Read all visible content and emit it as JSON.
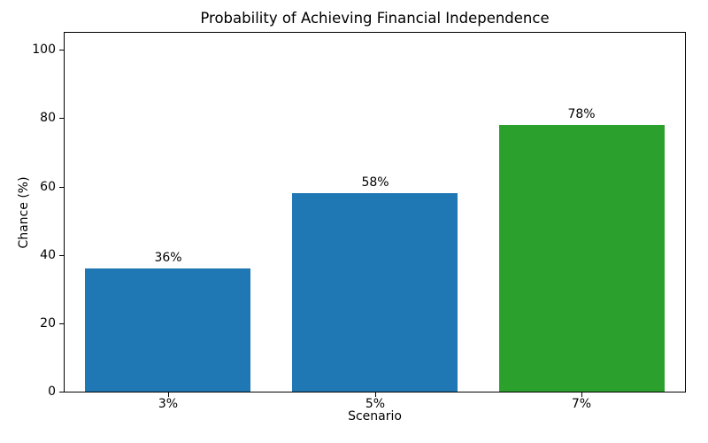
{
  "chart_data": {
    "type": "bar",
    "title": "Probability of Achieving Financial Independence",
    "xlabel": "Scenario",
    "ylabel": "Chance (%)",
    "categories": [
      "3%",
      "5%",
      "7%"
    ],
    "values": [
      36,
      58,
      78
    ],
    "bar_labels": [
      "36%",
      "58%",
      "78%"
    ],
    "bar_colors": [
      "#1f77b4",
      "#1f77b4",
      "#2ca02c"
    ],
    "ylim": [
      0,
      105
    ],
    "yticks": [
      0,
      20,
      40,
      60,
      80,
      100
    ],
    "grid": false,
    "legend": null,
    "background_color": "#ffffff",
    "spine_color": "#000000"
  }
}
